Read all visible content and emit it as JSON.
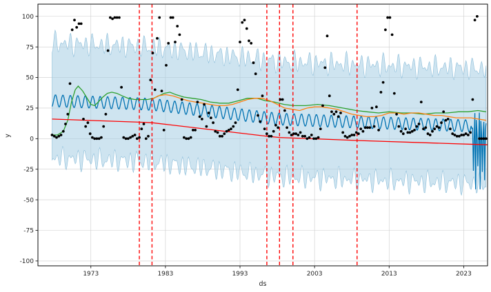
{
  "chart_data": {
    "type": "line",
    "xlabel": "ds",
    "ylabel": "y",
    "xlim": [
      1965.9,
      2026.2
    ],
    "ylim": [
      -104,
      110
    ],
    "grid": true,
    "x_ticks": [
      1973,
      1983,
      1993,
      2003,
      2013,
      2023
    ],
    "y_ticks": [
      -100,
      -75,
      -50,
      -25,
      0,
      25,
      50,
      75,
      100
    ],
    "changepoints": [
      1979.5,
      1981.2,
      1996.6,
      1998.3,
      2000.1,
      2008.7
    ],
    "observed": {
      "name": "",
      "color": "#000000",
      "points": [
        [
          1967.8,
          3
        ],
        [
          1968.1,
          2
        ],
        [
          1968.4,
          1
        ],
        [
          1968.7,
          2
        ],
        [
          1969.0,
          3
        ],
        [
          1969.3,
          6
        ],
        [
          1969.6,
          12
        ],
        [
          1969.9,
          20
        ],
        [
          1970.2,
          45
        ],
        [
          1970.5,
          89
        ],
        [
          1970.8,
          97
        ],
        [
          1971.1,
          91
        ],
        [
          1971.4,
          94
        ],
        [
          1971.7,
          94
        ],
        [
          1972.0,
          16
        ],
        [
          1972.3,
          10
        ],
        [
          1972.6,
          13
        ],
        [
          1972.9,
          4
        ],
        [
          1973.2,
          1
        ],
        [
          1973.5,
          0
        ],
        [
          1973.8,
          0
        ],
        [
          1974.1,
          0
        ],
        [
          1974.4,
          1
        ],
        [
          1974.7,
          10
        ],
        [
          1975.0,
          20
        ],
        [
          1975.3,
          72
        ],
        [
          1975.6,
          99
        ],
        [
          1975.9,
          98
        ],
        [
          1976.2,
          99
        ],
        [
          1976.5,
          99
        ],
        [
          1976.8,
          99
        ],
        [
          1977.1,
          42
        ],
        [
          1977.4,
          1
        ],
        [
          1977.7,
          0
        ],
        [
          1978.0,
          0
        ],
        [
          1978.3,
          1
        ],
        [
          1978.6,
          2
        ],
        [
          1978.9,
          3
        ],
        [
          1979.2,
          0
        ],
        [
          1979.5,
          1
        ],
        [
          1979.8,
          8
        ],
        [
          1980.1,
          12
        ],
        [
          1980.4,
          0
        ],
        [
          1980.7,
          2
        ],
        [
          1981.0,
          48
        ],
        [
          1981.3,
          70
        ],
        [
          1981.6,
          40
        ],
        [
          1981.9,
          82
        ],
        [
          1982.2,
          99
        ],
        [
          1982.5,
          39
        ],
        [
          1982.8,
          7
        ],
        [
          1983.1,
          60
        ],
        [
          1983.4,
          78
        ],
        [
          1983.7,
          99
        ],
        [
          1984.0,
          99
        ],
        [
          1984.3,
          79
        ],
        [
          1984.6,
          92
        ],
        [
          1984.9,
          85
        ],
        [
          1985.2,
          32
        ],
        [
          1985.5,
          1
        ],
        [
          1985.8,
          0
        ],
        [
          1986.1,
          0
        ],
        [
          1986.4,
          1
        ],
        [
          1986.7,
          7
        ],
        [
          1987.0,
          7
        ],
        [
          1987.3,
          30
        ],
        [
          1987.6,
          18
        ],
        [
          1987.9,
          16
        ],
        [
          1988.2,
          28
        ],
        [
          1988.5,
          10
        ],
        [
          1988.8,
          21
        ],
        [
          1989.1,
          17
        ],
        [
          1989.4,
          13
        ],
        [
          1989.7,
          6
        ],
        [
          1990.0,
          5
        ],
        [
          1990.3,
          2
        ],
        [
          1990.6,
          2
        ],
        [
          1990.9,
          4
        ],
        [
          1991.2,
          6
        ],
        [
          1991.5,
          7
        ],
        [
          1991.8,
          8
        ],
        [
          1992.1,
          10
        ],
        [
          1992.4,
          13
        ],
        [
          1992.7,
          40
        ],
        [
          1993.0,
          79
        ],
        [
          1993.3,
          95
        ],
        [
          1993.6,
          97
        ],
        [
          1993.9,
          90
        ],
        [
          1994.2,
          80
        ],
        [
          1994.5,
          78
        ],
        [
          1994.8,
          62
        ],
        [
          1995.1,
          53
        ],
        [
          1995.4,
          19
        ],
        [
          1995.7,
          14
        ],
        [
          1996.0,
          35
        ],
        [
          1996.3,
          8
        ],
        [
          1996.6,
          4
        ],
        [
          1996.9,
          2
        ],
        [
          1997.2,
          2
        ],
        [
          1997.5,
          6
        ],
        [
          1997.8,
          11
        ],
        [
          1998.1,
          9
        ],
        [
          1998.4,
          32
        ],
        [
          1998.7,
          32
        ],
        [
          1999.0,
          23
        ],
        [
          1999.3,
          9
        ],
        [
          1999.6,
          5
        ],
        [
          1999.9,
          3
        ],
        [
          2000.2,
          4
        ],
        [
          2000.5,
          4
        ],
        [
          2000.8,
          3
        ],
        [
          2001.1,
          5
        ],
        [
          2001.4,
          2
        ],
        [
          2001.7,
          2
        ],
        [
          2002.0,
          0
        ],
        [
          2002.3,
          1
        ],
        [
          2002.6,
          3
        ],
        [
          2002.9,
          0
        ],
        [
          2003.2,
          0
        ],
        [
          2003.5,
          1
        ],
        [
          2003.8,
          8
        ],
        [
          2004.1,
          27
        ],
        [
          2004.4,
          58
        ],
        [
          2004.7,
          84
        ],
        [
          2005.0,
          35
        ],
        [
          2005.3,
          22
        ],
        [
          2005.6,
          20
        ],
        [
          2005.9,
          22
        ],
        [
          2006.2,
          18
        ],
        [
          2006.5,
          21
        ],
        [
          2006.8,
          5
        ],
        [
          2007.1,
          2
        ],
        [
          2007.4,
          1
        ],
        [
          2007.7,
          2
        ],
        [
          2008.0,
          3
        ],
        [
          2008.3,
          3
        ],
        [
          2008.6,
          5
        ],
        [
          2008.9,
          4
        ],
        [
          2009.2,
          8
        ],
        [
          2009.5,
          6
        ],
        [
          2009.8,
          9
        ],
        [
          2010.1,
          9
        ],
        [
          2010.4,
          9
        ],
        [
          2010.7,
          25
        ],
        [
          2011.0,
          10
        ],
        [
          2011.3,
          26
        ],
        [
          2011.6,
          7
        ],
        [
          2011.9,
          38
        ],
        [
          2012.2,
          46
        ],
        [
          2012.5,
          89
        ],
        [
          2012.8,
          99
        ],
        [
          2013.1,
          99
        ],
        [
          2013.4,
          85
        ],
        [
          2013.7,
          37
        ],
        [
          2014.0,
          20
        ],
        [
          2014.3,
          10
        ],
        [
          2014.6,
          6
        ],
        [
          2014.9,
          4
        ],
        [
          2015.2,
          8
        ],
        [
          2015.5,
          5
        ],
        [
          2015.8,
          5
        ],
        [
          2016.1,
          6
        ],
        [
          2016.4,
          7
        ],
        [
          2016.7,
          10
        ],
        [
          2017.0,
          12
        ],
        [
          2017.3,
          30
        ],
        [
          2017.6,
          8
        ],
        [
          2017.9,
          9
        ],
        [
          2018.2,
          4
        ],
        [
          2018.5,
          3
        ],
        [
          2018.8,
          6
        ],
        [
          2019.1,
          8
        ],
        [
          2019.4,
          10
        ],
        [
          2019.7,
          9
        ],
        [
          2020.0,
          13
        ],
        [
          2020.3,
          22
        ],
        [
          2020.6,
          15
        ],
        [
          2020.9,
          16
        ],
        [
          2021.2,
          8
        ],
        [
          2021.5,
          4
        ],
        [
          2021.8,
          3
        ],
        [
          2022.1,
          2
        ],
        [
          2022.4,
          2
        ],
        [
          2022.7,
          3
        ],
        [
          2023.0,
          3
        ],
        [
          2023.3,
          4
        ],
        [
          2023.6,
          3
        ],
        [
          2023.9,
          5
        ],
        [
          2024.2,
          32
        ],
        [
          2024.5,
          97
        ],
        [
          2024.8,
          100
        ],
        [
          2025.1,
          0
        ],
        [
          2025.4,
          0
        ],
        [
          2025.7,
          0
        ],
        [
          2026.0,
          0
        ]
      ]
    },
    "trend": {
      "name": "",
      "color": "#ff0000",
      "points": [
        [
          1967.8,
          16
        ],
        [
          1979.5,
          13.5
        ],
        [
          1981.2,
          13
        ],
        [
          1996.6,
          2
        ],
        [
          1998.3,
          1
        ],
        [
          2000.1,
          0.5
        ],
        [
          2008.7,
          -1.5
        ],
        [
          2026.0,
          -5
        ],
        [
          2026.2,
          -5
        ]
      ]
    },
    "series": [
      {
        "name": "",
        "color": "#2ca02c",
        "points": [
          [
            1967.8,
            3
          ],
          [
            1968.5,
            3
          ],
          [
            1969.3,
            6
          ],
          [
            1969.9,
            15
          ],
          [
            1970.4,
            30
          ],
          [
            1970.9,
            40
          ],
          [
            1971.3,
            43
          ],
          [
            1971.9,
            39
          ],
          [
            1972.5,
            33
          ],
          [
            1973.0,
            28
          ],
          [
            1973.5,
            27
          ],
          [
            1974.0,
            30
          ],
          [
            1974.6,
            34
          ],
          [
            1975.2,
            37
          ],
          [
            1975.8,
            38
          ],
          [
            1976.5,
            37
          ],
          [
            1977.2,
            35
          ],
          [
            1978.0,
            33
          ],
          [
            1978.9,
            32
          ],
          [
            1979.8,
            32
          ],
          [
            1980.6,
            32
          ],
          [
            1981.4,
            33
          ],
          [
            1982.1,
            35
          ],
          [
            1982.8,
            37
          ],
          [
            1983.6,
            38
          ],
          [
            1984.4,
            36
          ],
          [
            1985.5,
            34
          ],
          [
            1986.6,
            33
          ],
          [
            1987.8,
            32
          ],
          [
            1989.0,
            30
          ],
          [
            1990.3,
            29
          ],
          [
            1991.5,
            29
          ],
          [
            1992.8,
            31
          ],
          [
            1994.0,
            33
          ],
          [
            1995.3,
            33
          ],
          [
            1996.4,
            31
          ],
          [
            1997.6,
            30
          ],
          [
            1998.9,
            28
          ],
          [
            2000.2,
            27
          ],
          [
            2001.8,
            27
          ],
          [
            2003.4,
            28
          ],
          [
            2005.0,
            27
          ],
          [
            2006.8,
            25
          ],
          [
            2008.6,
            23
          ],
          [
            2010.0,
            22
          ],
          [
            2011.6,
            21
          ],
          [
            2013.0,
            22
          ],
          [
            2014.6,
            21
          ],
          [
            2016.0,
            21
          ],
          [
            2017.6,
            20
          ],
          [
            2019.2,
            21
          ],
          [
            2020.8,
            21
          ],
          [
            2022.3,
            22
          ],
          [
            2023.6,
            22
          ],
          [
            2024.9,
            23
          ],
          [
            2026.0,
            22
          ]
        ]
      },
      {
        "name": "",
        "color": "#ff7f0e",
        "points": [
          [
            1981.2,
            32
          ],
          [
            1982.0,
            35
          ],
          [
            1983.0,
            36
          ],
          [
            1984.0,
            35
          ],
          [
            1985.0,
            33
          ],
          [
            1986.0,
            31
          ],
          [
            1987.0,
            30
          ],
          [
            1988.0,
            29
          ],
          [
            1989.0,
            28
          ],
          [
            1990.0,
            27
          ],
          [
            1991.0,
            27
          ],
          [
            1992.0,
            28
          ],
          [
            1993.0,
            30
          ],
          [
            1994.0,
            32
          ],
          [
            1995.0,
            33
          ],
          [
            1996.0,
            33
          ],
          [
            1997.0,
            31
          ],
          [
            1998.0,
            28
          ],
          [
            1999.0,
            25
          ],
          [
            2000.0,
            24
          ],
          [
            2001.0,
            23
          ],
          [
            2002.0,
            25
          ],
          [
            2003.0,
            26
          ],
          [
            2004.0,
            26
          ],
          [
            2005.0,
            25
          ],
          [
            2006.0,
            24
          ],
          [
            2007.0,
            22
          ],
          [
            2008.0,
            20
          ],
          [
            2009.0,
            19
          ],
          [
            2010.0,
            18
          ],
          [
            2011.0,
            18
          ],
          [
            2012.0,
            19
          ],
          [
            2013.0,
            21
          ],
          [
            2014.0,
            21
          ],
          [
            2015.0,
            20
          ],
          [
            2016.0,
            21
          ],
          [
            2017.0,
            21
          ],
          [
            2018.0,
            20
          ],
          [
            2019.0,
            19
          ],
          [
            2020.0,
            19
          ],
          [
            2021.0,
            18
          ],
          [
            2022.0,
            17
          ],
          [
            2023.0,
            17
          ],
          [
            2024.0,
            17
          ],
          [
            2025.0,
            16
          ],
          [
            2026.0,
            15
          ]
        ]
      }
    ]
  }
}
